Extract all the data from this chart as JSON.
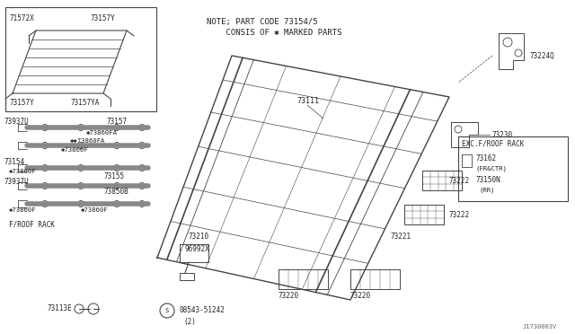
{
  "bg_color": "#ffffff",
  "line_color": "#444444",
  "text_color": "#222222",
  "diagram_label": "J1730003V",
  "note1": "NOTE; PART CODE 73154/5",
  "note2": "    CONSIS OF ✱ MARKED PARTS",
  "font_size": 5.5
}
